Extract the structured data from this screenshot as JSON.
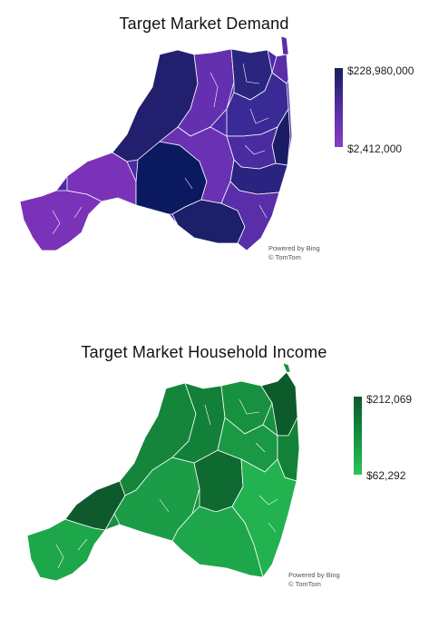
{
  "maps": [
    {
      "title": "Target Market Demand",
      "legend": {
        "max_label": "$228,980,000",
        "min_label": "$2,412,000"
      },
      "colors": {
        "high": "#0d1457",
        "mid": "#3b2a9a",
        "low": "#7a33b8",
        "boundary": "#ffffff"
      },
      "credit": {
        "line1": "Powered by Bing",
        "line2": "© TomTom"
      }
    },
    {
      "title": "Target Market Household Income",
      "legend": {
        "max_label": "$212,069",
        "min_label": "$62,292"
      },
      "colors": {
        "high": "#0b5a2a",
        "mid": "#168a3e",
        "low": "#21b04e",
        "boundary": "#ffffff"
      },
      "credit": {
        "line1": "Powered by Bing",
        "line2": "© TomTom"
      }
    }
  ]
}
